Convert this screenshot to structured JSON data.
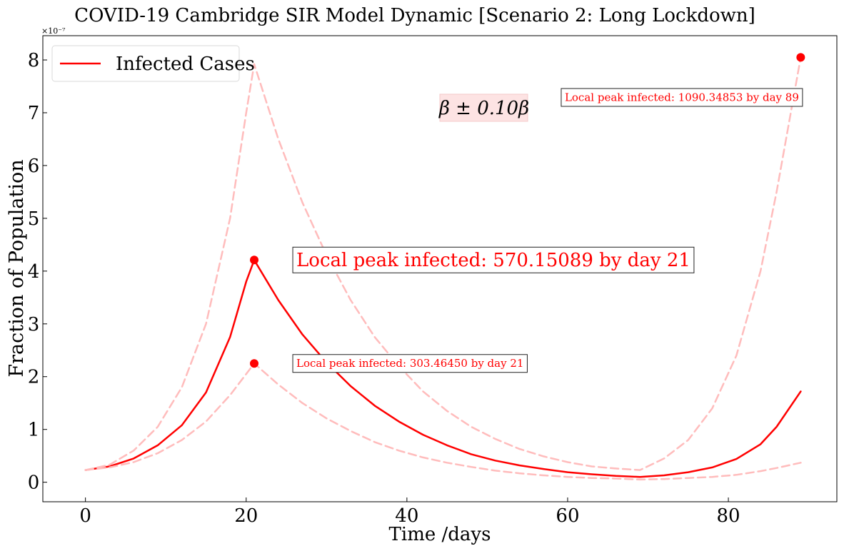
{
  "chart_data": {
    "type": "line",
    "title": "COVID-19 Cambridge SIR Model Dynamic [Scenario 2: Long Lockdown]",
    "xlabel": "Time /days",
    "ylabel": "Fraction of Population",
    "y_offset_text": "×10⁻⁷",
    "xlim": [
      -5.3,
      93.5
    ],
    "ylim": [
      -0.37,
      8.46
    ],
    "x_ticks": [
      0,
      20,
      40,
      60,
      80
    ],
    "y_ticks": [
      0,
      1,
      2,
      3,
      4,
      5,
      6,
      7,
      8
    ],
    "grid": false,
    "legend_position": "top-left",
    "legend": [
      "Infected Cases"
    ],
    "beta_label": "β ± 0.10β",
    "colors": {
      "main": "#ff0000",
      "band": "#ffbcbc",
      "beta_box_fill": "#fde3e3",
      "beta_box_edge": "#f4c9c9",
      "annotation_edge": "#222222"
    },
    "series": [
      {
        "name": "Infected Cases",
        "style": "solid",
        "x": [
          0,
          3,
          6,
          9,
          12,
          15,
          18,
          20,
          21,
          24,
          27,
          30,
          33,
          36,
          39,
          42,
          45,
          48,
          51,
          54,
          57,
          60,
          63,
          66,
          69,
          72,
          75,
          78,
          81,
          84,
          86,
          89
        ],
        "y": [
          0.23,
          0.3,
          0.45,
          0.7,
          1.08,
          1.7,
          2.75,
          3.8,
          4.21,
          3.45,
          2.8,
          2.27,
          1.82,
          1.45,
          1.15,
          0.9,
          0.7,
          0.53,
          0.41,
          0.32,
          0.25,
          0.19,
          0.15,
          0.12,
          0.1,
          0.13,
          0.19,
          0.28,
          0.44,
          0.72,
          1.05,
          1.72
        ]
      },
      {
        "style": "dashed",
        "x": [
          0,
          3,
          6,
          9,
          12,
          15,
          18,
          20,
          21,
          24,
          27,
          30,
          33,
          36,
          39,
          42,
          45,
          48,
          51,
          54,
          57,
          60,
          63,
          66,
          69,
          72,
          75,
          78,
          81,
          84,
          86,
          89
        ],
        "y": [
          0.23,
          0.33,
          0.6,
          1.05,
          1.8,
          3.0,
          5.0,
          7.0,
          7.92,
          6.5,
          5.3,
          4.3,
          3.45,
          2.75,
          2.2,
          1.72,
          1.35,
          1.05,
          0.82,
          0.63,
          0.49,
          0.38,
          0.3,
          0.26,
          0.23,
          0.45,
          0.8,
          1.4,
          2.4,
          4.0,
          5.5,
          8.05
        ]
      },
      {
        "style": "dashed",
        "x": [
          0,
          3,
          6,
          9,
          12,
          15,
          18,
          20,
          21,
          24,
          27,
          30,
          33,
          36,
          39,
          42,
          45,
          48,
          51,
          54,
          57,
          60,
          63,
          66,
          69,
          72,
          75,
          78,
          81,
          84,
          86,
          89
        ],
        "y": [
          0.23,
          0.28,
          0.38,
          0.55,
          0.8,
          1.15,
          1.65,
          2.05,
          2.25,
          1.85,
          1.5,
          1.21,
          0.97,
          0.76,
          0.6,
          0.47,
          0.37,
          0.29,
          0.22,
          0.17,
          0.13,
          0.1,
          0.08,
          0.07,
          0.05,
          0.06,
          0.08,
          0.1,
          0.14,
          0.21,
          0.27,
          0.37
        ]
      }
    ],
    "peaks": [
      {
        "x": 21,
        "y": 4.21
      },
      {
        "x": 21,
        "y": 2.25
      },
      {
        "x": 89,
        "y": 8.05
      }
    ],
    "annotations": [
      {
        "text": "Local peak infected: 570.15089 by day 21",
        "x": 25.8,
        "y": 4.21,
        "size": "large"
      },
      {
        "text": "Local peak infected: 303.46450 by day 21",
        "x": 25.8,
        "y": 2.25,
        "size": "small"
      },
      {
        "text": "Local peak infected: 1090.34853 by day 89",
        "x": 59.2,
        "y": 7.29,
        "size": "small"
      }
    ]
  }
}
